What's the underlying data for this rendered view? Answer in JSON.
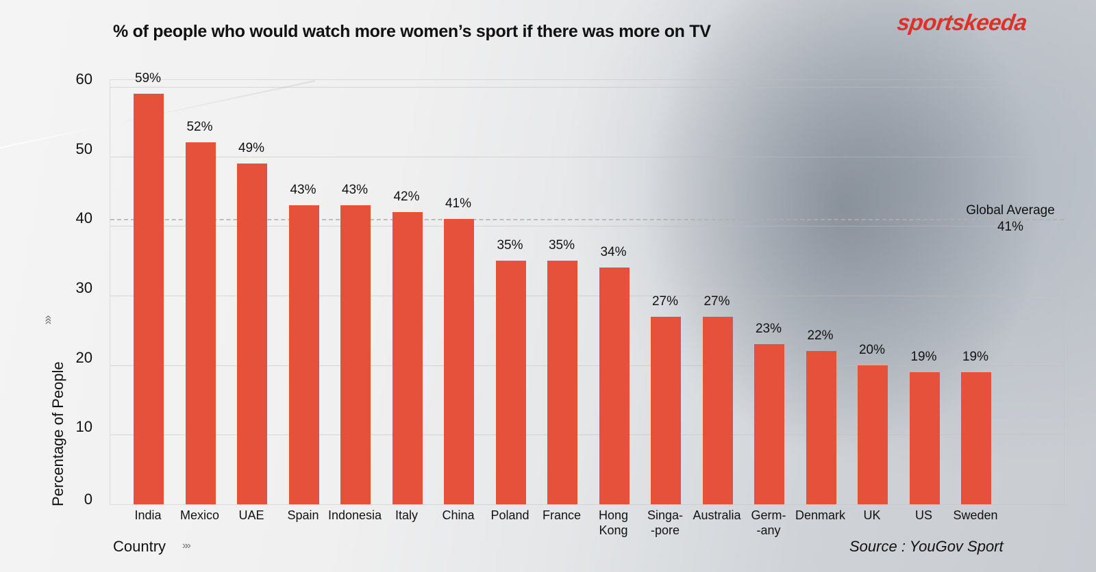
{
  "header": {
    "title": "% of people who would watch more women’s sport if there was more on TV",
    "brand": "sportskeeda"
  },
  "axes": {
    "ylabel": "Percentage of People",
    "xlabel": "Country",
    "yticks": [
      "0",
      "10",
      "20",
      "30",
      "40",
      "50",
      "60"
    ],
    "chevron": "»»"
  },
  "average": {
    "label": "Global Average",
    "value": "41%"
  },
  "source": "Source : YouGov Sport",
  "colors": {
    "bar": "#e5513a",
    "brand": "#e0302a"
  },
  "bars": [
    {
      "category": "India",
      "value_label": "59%"
    },
    {
      "category": "Mexico",
      "value_label": "52%"
    },
    {
      "category": "UAE",
      "value_label": "49%"
    },
    {
      "category": "Spain",
      "value_label": "43%"
    },
    {
      "category": "Indonesia",
      "value_label": "43%"
    },
    {
      "category": "Italy",
      "value_label": "42%"
    },
    {
      "category": "China",
      "value_label": "41%"
    },
    {
      "category": "Poland",
      "value_label": "35%"
    },
    {
      "category": "France",
      "value_label": "35%"
    },
    {
      "category": "Hong\nKong",
      "value_label": "34%"
    },
    {
      "category": "Singa-\n-pore",
      "value_label": "27%"
    },
    {
      "category": "Australia",
      "value_label": "27%"
    },
    {
      "category": "Germ-\n-any",
      "value_label": "23%"
    },
    {
      "category": "Denmark",
      "value_label": "22%"
    },
    {
      "category": "UK",
      "value_label": "20%"
    },
    {
      "category": "US",
      "value_label": "19%"
    },
    {
      "category": "Sweden",
      "value_label": "19%"
    }
  ],
  "chart_data": {
    "type": "bar",
    "title": "% of people who would watch more women’s sport if there was more on TV",
    "xlabel": "Country",
    "ylabel": "Percentage of People",
    "categories": [
      "India",
      "Mexico",
      "UAE",
      "Spain",
      "Indonesia",
      "Italy",
      "China",
      "Poland",
      "France",
      "Hong Kong",
      "Singapore",
      "Australia",
      "Germany",
      "Denmark",
      "UK",
      "US",
      "Sweden"
    ],
    "values": [
      59,
      52,
      49,
      43,
      43,
      42,
      41,
      35,
      35,
      34,
      27,
      27,
      23,
      22,
      20,
      19,
      19
    ],
    "ylim": [
      0,
      60
    ],
    "yticks": [
      0,
      10,
      20,
      30,
      40,
      50,
      60
    ],
    "grid": true,
    "annotations": [
      {
        "type": "hline",
        "y": 41,
        "label": "Global Average 41%",
        "style": "dashed"
      }
    ],
    "legend": null,
    "source": "Source : YouGov Sport"
  }
}
